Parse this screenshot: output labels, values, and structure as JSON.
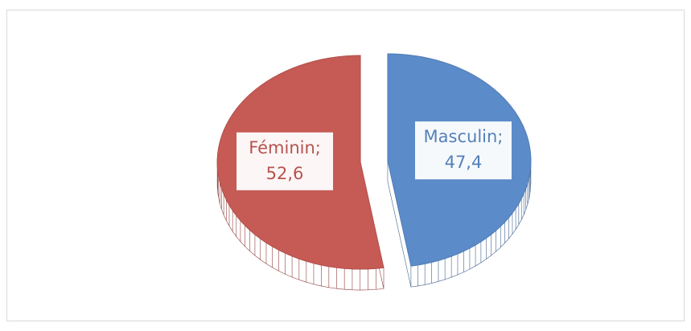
{
  "chart_data": {
    "type": "pie",
    "categories": [
      "Masculin;",
      "Féminin;"
    ],
    "values": [
      47.4,
      52.6
    ],
    "value_labels": [
      "47,4",
      "52,6"
    ],
    "colors": [
      "#5b8bc9",
      "#c65a55"
    ],
    "explode": true
  }
}
